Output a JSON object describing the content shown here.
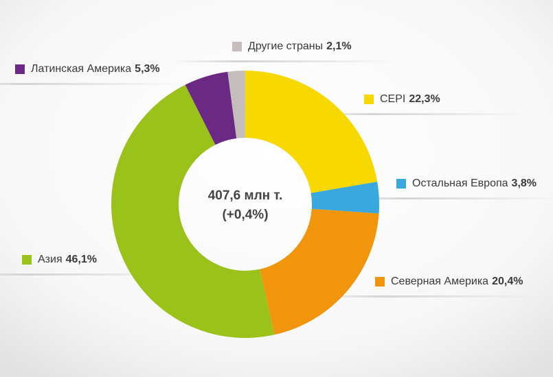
{
  "chart_data": {
    "type": "donut",
    "center_label": [
      "407,6 млн т.",
      "(+0,4%)"
    ],
    "categories": [
      "CEPI",
      "Остальная Европа",
      "Северная Америка",
      "Азия",
      "Латинская Америка",
      "Другие страны"
    ],
    "values": [
      22.3,
      3.8,
      20.4,
      46.1,
      5.3,
      2.1
    ],
    "value_labels": [
      "22,3%",
      "3,8%",
      "20,4%",
      "46,1%",
      "5,3%",
      "2,1%"
    ],
    "colors": [
      "#f7d800",
      "#39a8dc",
      "#f0950c",
      "#9bc21b",
      "#6a2983",
      "#c5bdbc"
    ]
  }
}
